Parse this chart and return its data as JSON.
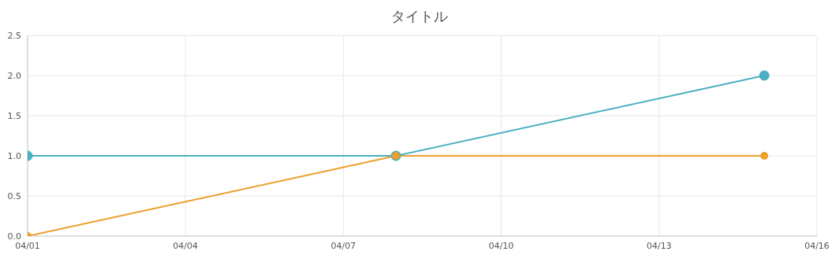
{
  "chart_data": {
    "type": "line",
    "title": "タイトル",
    "ylim": [
      0,
      2.5
    ],
    "yticks": [
      {
        "value": 0,
        "label": "0.0"
      },
      {
        "value": 0.5,
        "label": "0.5"
      },
      {
        "value": 1,
        "label": "1.0"
      },
      {
        "value": 1.5,
        "label": "1.5"
      },
      {
        "value": 2,
        "label": "2.0"
      },
      {
        "value": 2.5,
        "label": "2.5"
      }
    ],
    "xlim": [
      "--04-01",
      "--04-16"
    ],
    "xticks": [
      {
        "value": "--04-01",
        "label": "04/01"
      },
      {
        "value": "--04-04",
        "label": "04/04"
      },
      {
        "value": "--04-07",
        "label": "04/07"
      },
      {
        "value": "--04-10",
        "label": "04/10"
      },
      {
        "value": "--04-13",
        "label": "04/13"
      },
      {
        "value": "--04-16",
        "label": "04/16"
      }
    ],
    "x": [
      "--04-01",
      "--04-08",
      "--04-15"
    ],
    "series": [
      {
        "color": "#4bb0c1",
        "values": [
          1,
          1,
          2
        ]
      },
      {
        "color": "#eba02c",
        "values": [
          0,
          1,
          1
        ]
      }
    ],
    "grid": true,
    "legend": false,
    "marker": "circle",
    "line_style": "solid"
  }
}
